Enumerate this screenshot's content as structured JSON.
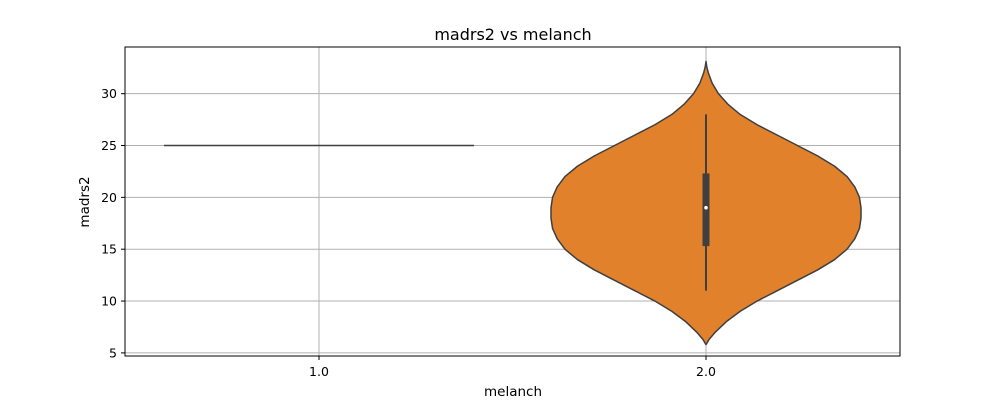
{
  "chart_data": {
    "type": "violin",
    "title": "madrs2 vs melanch",
    "xlabel": "melanch",
    "ylabel": "madrs2",
    "categories": [
      "1.0",
      "2.0"
    ],
    "y_ticks": [
      5,
      10,
      15,
      20,
      25,
      30
    ],
    "ylim": [
      4.7,
      34.5
    ],
    "grid": true,
    "violins": [
      {
        "category": "1.0",
        "single_value": 25,
        "color": "#1f77b4"
      },
      {
        "category": "2.0",
        "color": "#e1812c",
        "min": 5.8,
        "max": 33.1,
        "median": 19,
        "q1": 15.3,
        "q3": 22.3,
        "whisker_low": 11,
        "whisker_high": 28,
        "density_profile": [
          [
            5.8,
            0.0
          ],
          [
            6.3,
            0.02
          ],
          [
            7.0,
            0.06
          ],
          [
            8.0,
            0.13
          ],
          [
            9.0,
            0.22
          ],
          [
            10.0,
            0.33
          ],
          [
            11.0,
            0.46
          ],
          [
            12.0,
            0.59
          ],
          [
            13.0,
            0.72
          ],
          [
            14.0,
            0.83
          ],
          [
            15.0,
            0.91
          ],
          [
            16.0,
            0.96
          ],
          [
            17.0,
            0.99
          ],
          [
            18.0,
            1.0
          ],
          [
            19.0,
            1.0
          ],
          [
            20.0,
            0.99
          ],
          [
            21.0,
            0.96
          ],
          [
            22.0,
            0.91
          ],
          [
            23.0,
            0.83
          ],
          [
            24.0,
            0.72
          ],
          [
            25.0,
            0.59
          ],
          [
            26.0,
            0.46
          ],
          [
            27.0,
            0.33
          ],
          [
            28.0,
            0.22
          ],
          [
            29.0,
            0.14
          ],
          [
            30.0,
            0.08
          ],
          [
            31.0,
            0.04
          ],
          [
            32.0,
            0.015
          ],
          [
            32.6,
            0.005
          ],
          [
            33.1,
            0.0
          ]
        ]
      }
    ]
  },
  "colors": {
    "edge": "#3f3f3f",
    "grid": "#b0b0b0",
    "box": "#3f3f3f",
    "median_dot": "#ffffff"
  }
}
